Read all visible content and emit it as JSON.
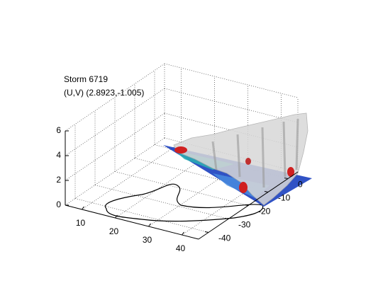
{
  "chart_data": {
    "type": "isosurface3d",
    "title": "Storm 6719",
    "subtitle": "(U,V) (2.8923,-1.005)",
    "xlim": [
      5,
      45
    ],
    "ylim": [
      -45,
      5
    ],
    "zlim": [
      0,
      6
    ],
    "xticks": [
      10,
      20,
      30,
      40
    ],
    "yticks": [
      0,
      -10,
      -20,
      -30,
      -40
    ],
    "zticks": [
      0,
      2,
      4,
      6
    ],
    "grid": true
  }
}
